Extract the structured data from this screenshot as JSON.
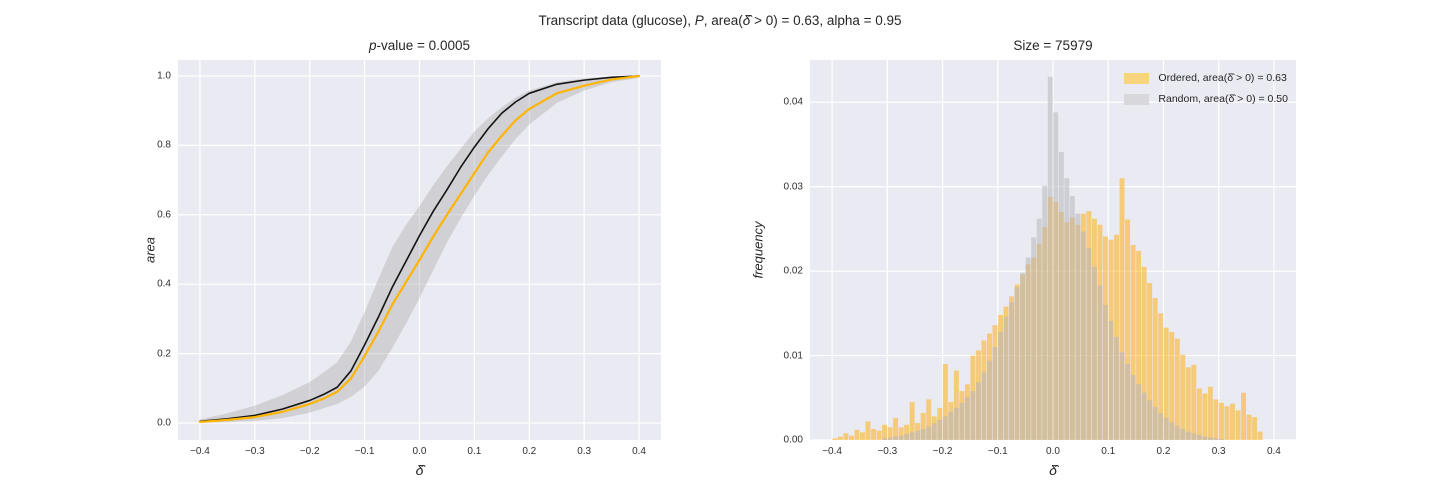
{
  "figure": {
    "suptitle_parts": [
      {
        "text": "Transcript data (glucose), "
      },
      {
        "text": "P",
        "italic": true
      },
      {
        "text": ", area("
      },
      {
        "text": "δ̂",
        "italic": true
      },
      {
        "text": " > 0) = 0.63, alpha = 0.95"
      }
    ],
    "background": "#ffffff",
    "axes_background": "#eaeaf2",
    "grid_color": "#ffffff",
    "text_color": "#262626"
  },
  "chart_data": [
    {
      "type": "line",
      "title_parts": [
        {
          "text": "p",
          "italic": true
        },
        {
          "text": "-value = 0.0005"
        }
      ],
      "xlabel": "δ̂",
      "ylabel": "area",
      "xlim": [
        -0.44,
        0.44
      ],
      "ylim": [
        -0.049,
        1.046
      ],
      "grid": true,
      "x_ticks": {
        "values": [
          -0.4,
          -0.3,
          -0.2,
          -0.1,
          0.0,
          0.1,
          0.2,
          0.3,
          0.4
        ],
        "labels": [
          "−0.4",
          "−0.3",
          "−0.2",
          "−0.1",
          "0.0",
          "0.1",
          "0.2",
          "0.3",
          "0.4"
        ]
      },
      "y_ticks": {
        "values": [
          0.0,
          0.2,
          0.4,
          0.6,
          0.8,
          1.0
        ],
        "labels": [
          "0.0",
          "0.2",
          "0.4",
          "0.6",
          "0.8",
          "1.0"
        ]
      },
      "x": [
        -0.4,
        -0.35,
        -0.3,
        -0.25,
        -0.2,
        -0.175,
        -0.15,
        -0.125,
        -0.1,
        -0.075,
        -0.05,
        -0.025,
        0.0,
        0.025,
        0.05,
        0.075,
        0.1,
        0.125,
        0.15,
        0.175,
        0.2,
        0.25,
        0.3,
        0.35,
        0.4
      ],
      "series": [
        {
          "name": "random-null-mean-cdf",
          "color": "#141414",
          "width": 1.6,
          "values": [
            0.005,
            0.012,
            0.022,
            0.04,
            0.065,
            0.082,
            0.103,
            0.15,
            0.225,
            0.305,
            0.39,
            0.465,
            0.54,
            0.61,
            0.672,
            0.737,
            0.795,
            0.848,
            0.893,
            0.925,
            0.95,
            0.976,
            0.988,
            0.996,
            1.0
          ]
        },
        {
          "name": "ordered-cdf",
          "color": "#ffb400",
          "width": 2.2,
          "values": [
            0.003,
            0.009,
            0.017,
            0.032,
            0.055,
            0.07,
            0.09,
            0.128,
            0.193,
            0.263,
            0.34,
            0.405,
            0.47,
            0.537,
            0.6,
            0.66,
            0.72,
            0.78,
            0.828,
            0.872,
            0.905,
            0.95,
            0.972,
            0.99,
            1.0
          ]
        }
      ],
      "band": {
        "name": "null-confidence-band",
        "color": "rgba(165,165,165,0.38)",
        "upper": [
          0.01,
          0.028,
          0.05,
          0.08,
          0.118,
          0.145,
          0.175,
          0.235,
          0.32,
          0.415,
          0.505,
          0.57,
          0.625,
          0.685,
          0.74,
          0.79,
          0.84,
          0.878,
          0.91,
          0.938,
          0.958,
          0.982,
          0.993,
          0.999,
          1.0
        ],
        "lower": [
          0.0,
          0.002,
          0.006,
          0.014,
          0.03,
          0.042,
          0.055,
          0.075,
          0.105,
          0.15,
          0.215,
          0.285,
          0.36,
          0.44,
          0.52,
          0.59,
          0.655,
          0.715,
          0.768,
          0.818,
          0.86,
          0.922,
          0.958,
          0.982,
          0.995
        ]
      }
    },
    {
      "type": "bar",
      "title": "Size = 75979",
      "xlabel": "δ̂",
      "ylabel": "frequency",
      "xlim": [
        -0.44,
        0.44
      ],
      "ylim": [
        0,
        0.045
      ],
      "grid": true,
      "x_ticks": {
        "values": [
          -0.4,
          -0.3,
          -0.2,
          -0.1,
          0.0,
          0.1,
          0.2,
          0.3,
          0.4
        ],
        "labels": [
          "−0.4",
          "−0.3",
          "−0.2",
          "−0.1",
          "0.0",
          "0.1",
          "0.2",
          "0.3",
          "0.4"
        ]
      },
      "y_ticks": {
        "values": [
          0.0,
          0.01,
          0.02,
          0.03,
          0.04
        ],
        "labels": [
          "0.00",
          "0.01",
          "0.02",
          "0.03",
          "0.04"
        ]
      },
      "bins": {
        "start": -0.395,
        "step": 0.01,
        "count": 78
      },
      "series": [
        {
          "name": "ordered-histogram",
          "color": "rgba(255,170,0,0.5)",
          "values": [
            0.0002,
            0.0004,
            0.0008,
            0.0005,
            0.0012,
            0.0009,
            0.0022,
            0.0013,
            0.0011,
            0.0018,
            0.0015,
            0.0026,
            0.0015,
            0.0018,
            0.0045,
            0.002,
            0.0032,
            0.0048,
            0.0028,
            0.0038,
            0.009,
            0.0045,
            0.0082,
            0.0058,
            0.0066,
            0.01,
            0.0106,
            0.0118,
            0.0126,
            0.0136,
            0.0148,
            0.0158,
            0.017,
            0.0184,
            0.0196,
            0.0208,
            0.0216,
            0.0232,
            0.0252,
            0.0288,
            0.0282,
            0.027,
            0.0258,
            0.0263,
            0.0255,
            0.0268,
            0.0271,
            0.0262,
            0.0255,
            0.0241,
            0.0237,
            0.0243,
            0.031,
            0.0261,
            0.0231,
            0.0224,
            0.0205,
            0.0186,
            0.0168,
            0.015,
            0.0133,
            0.0128,
            0.012,
            0.0101,
            0.0086,
            0.0089,
            0.0061,
            0.0055,
            0.0063,
            0.0048,
            0.0044,
            0.004,
            0.0043,
            0.0035,
            0.0056,
            0.003,
            0.0027,
            0.001
          ]
        },
        {
          "name": "random-histogram",
          "color": "rgba(183,183,190,0.55)",
          "values": [
            0,
            0,
            0,
            0,
            0,
            0,
            0,
            0,
            0,
            0.0002,
            0.0003,
            0.0004,
            0.0005,
            0.0007,
            0.0009,
            0.0011,
            0.0013,
            0.0016,
            0.002,
            0.0024,
            0.0028,
            0.0033,
            0.0038,
            0.0044,
            0.0051,
            0.0058,
            0.0068,
            0.008,
            0.0094,
            0.011,
            0.0128,
            0.0146,
            0.0163,
            0.0181,
            0.0198,
            0.0216,
            0.024,
            0.0262,
            0.0301,
            0.043,
            0.0388,
            0.0341,
            0.031,
            0.0289,
            0.0268,
            0.0247,
            0.0227,
            0.0205,
            0.0183,
            0.016,
            0.0141,
            0.0122,
            0.0104,
            0.009,
            0.0077,
            0.0066,
            0.0056,
            0.0047,
            0.0039,
            0.0032,
            0.0026,
            0.0021,
            0.0017,
            0.0013,
            0.001,
            0.0008,
            0.0006,
            0.0004,
            0.0003,
            0.0002,
            0.0001,
            0,
            0,
            0,
            0,
            0,
            0,
            0
          ]
        }
      ],
      "legend": {
        "entries": [
          {
            "label": "Ordered, area(δ̂ > 0) = 0.63",
            "swatch": "#f8d57d"
          },
          {
            "label": "Random, area(δ̂ > 0) = 0.50",
            "swatch": "#d8d8dc"
          }
        ]
      }
    }
  ]
}
